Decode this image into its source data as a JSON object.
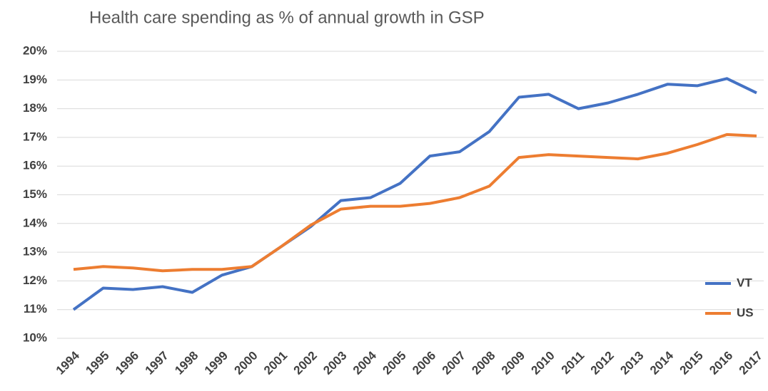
{
  "chart_data": {
    "type": "line",
    "title": "Health care spending as % of annual growth in GSP",
    "categories": [
      "1994",
      "1995",
      "1996",
      "1997",
      "1998",
      "1999",
      "2000",
      "2001",
      "2002",
      "2003",
      "2004",
      "2005",
      "2006",
      "2007",
      "2008",
      "2009",
      "2010",
      "2011",
      "2012",
      "2013",
      "2014",
      "2015",
      "2016",
      "2017"
    ],
    "series": [
      {
        "name": "VT",
        "color": "#4472c4",
        "values": [
          11.0,
          11.75,
          11.7,
          11.8,
          11.6,
          12.2,
          12.5,
          13.2,
          13.9,
          14.8,
          14.9,
          15.4,
          16.35,
          16.5,
          17.2,
          18.4,
          18.5,
          18.0,
          18.2,
          18.5,
          18.85,
          18.8,
          19.05,
          18.55
        ]
      },
      {
        "name": "US",
        "color": "#ed7d31",
        "values": [
          12.4,
          12.5,
          12.45,
          12.35,
          12.4,
          12.4,
          12.5,
          13.2,
          13.95,
          14.5,
          14.6,
          14.6,
          14.7,
          14.9,
          15.3,
          16.3,
          16.4,
          16.35,
          16.3,
          16.25,
          16.45,
          16.75,
          17.1,
          17.05
        ]
      }
    ],
    "ylim": [
      10,
      20
    ],
    "yticks": [
      {
        "value": 10,
        "label": "10%"
      },
      {
        "value": 11,
        "label": "11%"
      },
      {
        "value": 12,
        "label": "12%"
      },
      {
        "value": 13,
        "label": "13%"
      },
      {
        "value": 14,
        "label": "14%"
      },
      {
        "value": 15,
        "label": "15%"
      },
      {
        "value": 16,
        "label": "16%"
      },
      {
        "value": 17,
        "label": "17%"
      },
      {
        "value": 18,
        "label": "18%"
      },
      {
        "value": 19,
        "label": "19%"
      },
      {
        "value": 20,
        "label": "20%"
      }
    ],
    "grid": true,
    "legend": "right"
  }
}
